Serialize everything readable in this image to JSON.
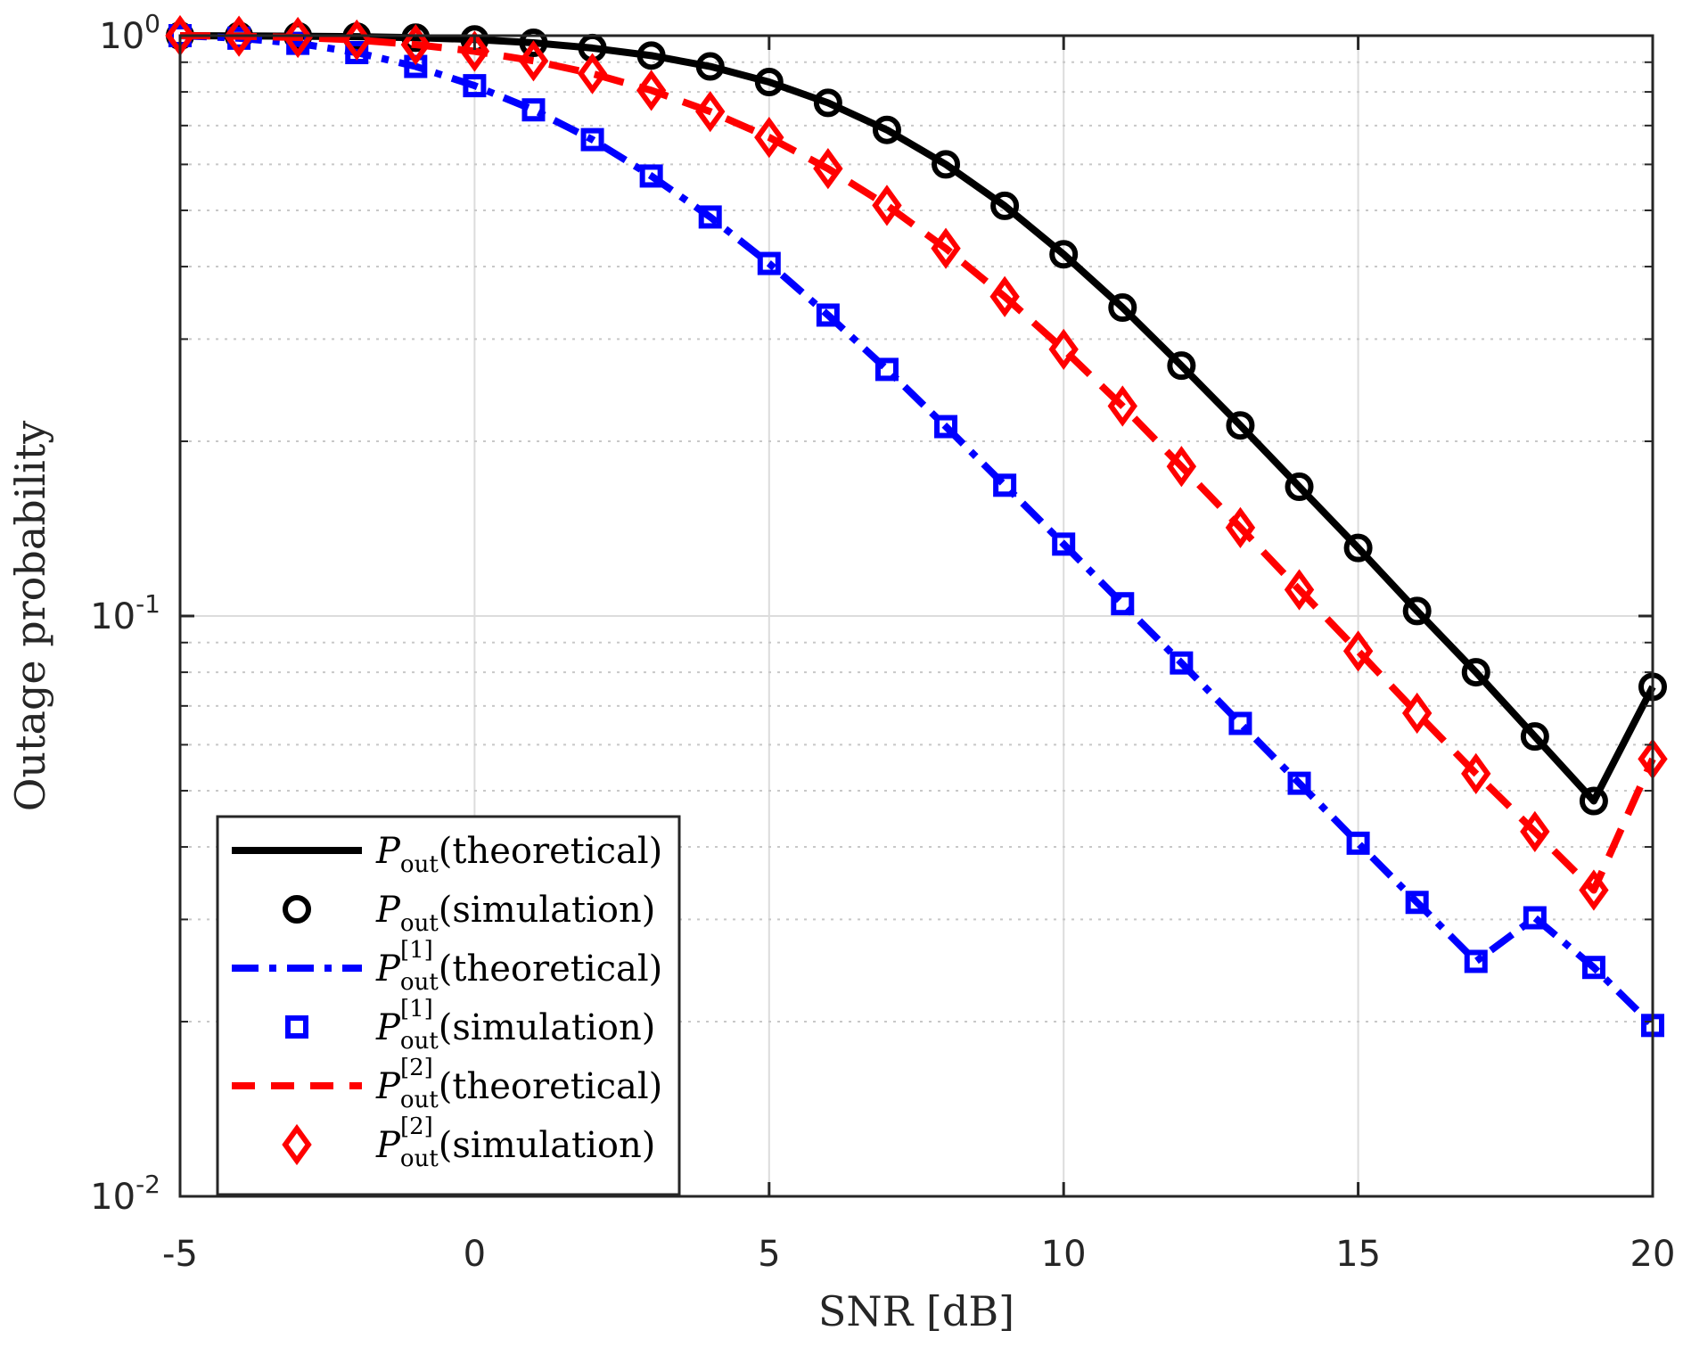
{
  "chart_data": {
    "type": "line",
    "xlabel": "SNR [dB]",
    "ylabel": "Outage probability",
    "xlim": [
      -5,
      20
    ],
    "ylim": [
      0.01,
      1
    ],
    "yscale": "log",
    "grid": true,
    "legend_position": "bottom-left",
    "x_ticks": [
      -5,
      0,
      5,
      10,
      15,
      20
    ],
    "x_tick_labels": [
      "-5",
      "0",
      "5",
      "10",
      "15",
      "20"
    ],
    "y_ticks": [
      {
        "value": 1,
        "base": "10",
        "exp": "0"
      },
      {
        "value": 0.1,
        "base": "10",
        "exp": "-1"
      },
      {
        "value": 0.01,
        "base": "10",
        "exp": "-2"
      }
    ],
    "x": [
      -5,
      -4,
      -3,
      -2,
      -1,
      0,
      1,
      2,
      3,
      4,
      5,
      6,
      7,
      8,
      9,
      10,
      11,
      12,
      13,
      14,
      15,
      16,
      17,
      18,
      19,
      20
    ],
    "series": [
      {
        "name": "P_out (theoretical)",
        "color": "#000000",
        "line": "solid",
        "marker": "none",
        "legend_main": "P",
        "legend_sub": "out",
        "legend_sup": "",
        "legend_text": "(theoretical)",
        "values": [
          1.0,
          0.999,
          0.998,
          0.996,
          0.992,
          0.985,
          0.972,
          0.952,
          0.924,
          0.885,
          0.832,
          0.766,
          0.688,
          0.6,
          0.509,
          0.42,
          0.34,
          0.27,
          0.213,
          0.167,
          0.131,
          0.102,
          0.08,
          0.062,
          0.048,
          0.0755
        ]
      },
      {
        "name": "P_out (simulation)",
        "color": "#000000",
        "line": "none",
        "marker": "circle",
        "legend_main": "P",
        "legend_sub": "out",
        "legend_sup": "",
        "legend_text": "(simulation)",
        "values": [
          1.0,
          0.999,
          0.998,
          0.996,
          0.992,
          0.985,
          0.972,
          0.952,
          0.924,
          0.885,
          0.832,
          0.766,
          0.688,
          0.6,
          0.509,
          0.42,
          0.34,
          0.27,
          0.213,
          0.167,
          0.131,
          0.102,
          0.08,
          0.062,
          0.048,
          0.0755
        ]
      },
      {
        "name": "P_out^[1] (theoretical)",
        "color": "#0000ff",
        "line": "dashdot",
        "marker": "none",
        "legend_main": "P",
        "legend_sub": "out",
        "legend_sup": "[1]",
        "legend_text": "(theoretical)",
        "values": [
          1.0,
          0.99,
          0.97,
          0.935,
          0.885,
          0.82,
          0.745,
          0.662,
          0.573,
          0.487,
          0.405,
          0.33,
          0.266,
          0.212,
          0.168,
          0.133,
          0.105,
          0.083,
          0.0653,
          0.0515,
          0.0406,
          0.0321,
          0.0254,
          0.0302,
          0.0248,
          0.0197
        ]
      },
      {
        "name": "P_out^[1] (simulation)",
        "color": "#0000ff",
        "line": "none",
        "marker": "square",
        "legend_main": "P",
        "legend_sub": "out",
        "legend_sup": "[1]",
        "legend_text": "(simulation)",
        "values": [
          1.0,
          0.99,
          0.97,
          0.935,
          0.885,
          0.82,
          0.745,
          0.662,
          0.573,
          0.487,
          0.405,
          0.33,
          0.266,
          0.212,
          0.168,
          0.133,
          0.105,
          0.083,
          0.0653,
          0.0515,
          0.0406,
          0.0321,
          0.0254,
          0.0302,
          0.0248,
          0.0197
        ]
      },
      {
        "name": "P_out^[2] (theoretical)",
        "color": "#ff0000",
        "line": "dashed",
        "marker": "none",
        "legend_main": "P",
        "legend_sub": "out",
        "legend_sup": "[2]",
        "legend_text": "(theoretical)",
        "values": [
          1.0,
          0.998,
          0.993,
          0.983,
          0.965,
          0.94,
          0.905,
          0.86,
          0.805,
          0.74,
          0.668,
          0.59,
          0.51,
          0.43,
          0.355,
          0.288,
          0.23,
          0.181,
          0.142,
          0.111,
          0.087,
          0.068,
          0.0535,
          0.0425,
          0.0337,
          0.0567
        ]
      },
      {
        "name": "P_out^[2] (simulation)",
        "color": "#ff0000",
        "line": "none",
        "marker": "diamond",
        "legend_main": "P",
        "legend_sub": "out",
        "legend_sup": "[2]",
        "legend_text": "(simulation)",
        "values": [
          1.0,
          0.998,
          0.993,
          0.983,
          0.965,
          0.94,
          0.905,
          0.86,
          0.805,
          0.74,
          0.668,
          0.59,
          0.51,
          0.43,
          0.355,
          0.288,
          0.23,
          0.181,
          0.142,
          0.111,
          0.087,
          0.068,
          0.0535,
          0.0425,
          0.0337,
          0.0567
        ]
      }
    ]
  }
}
